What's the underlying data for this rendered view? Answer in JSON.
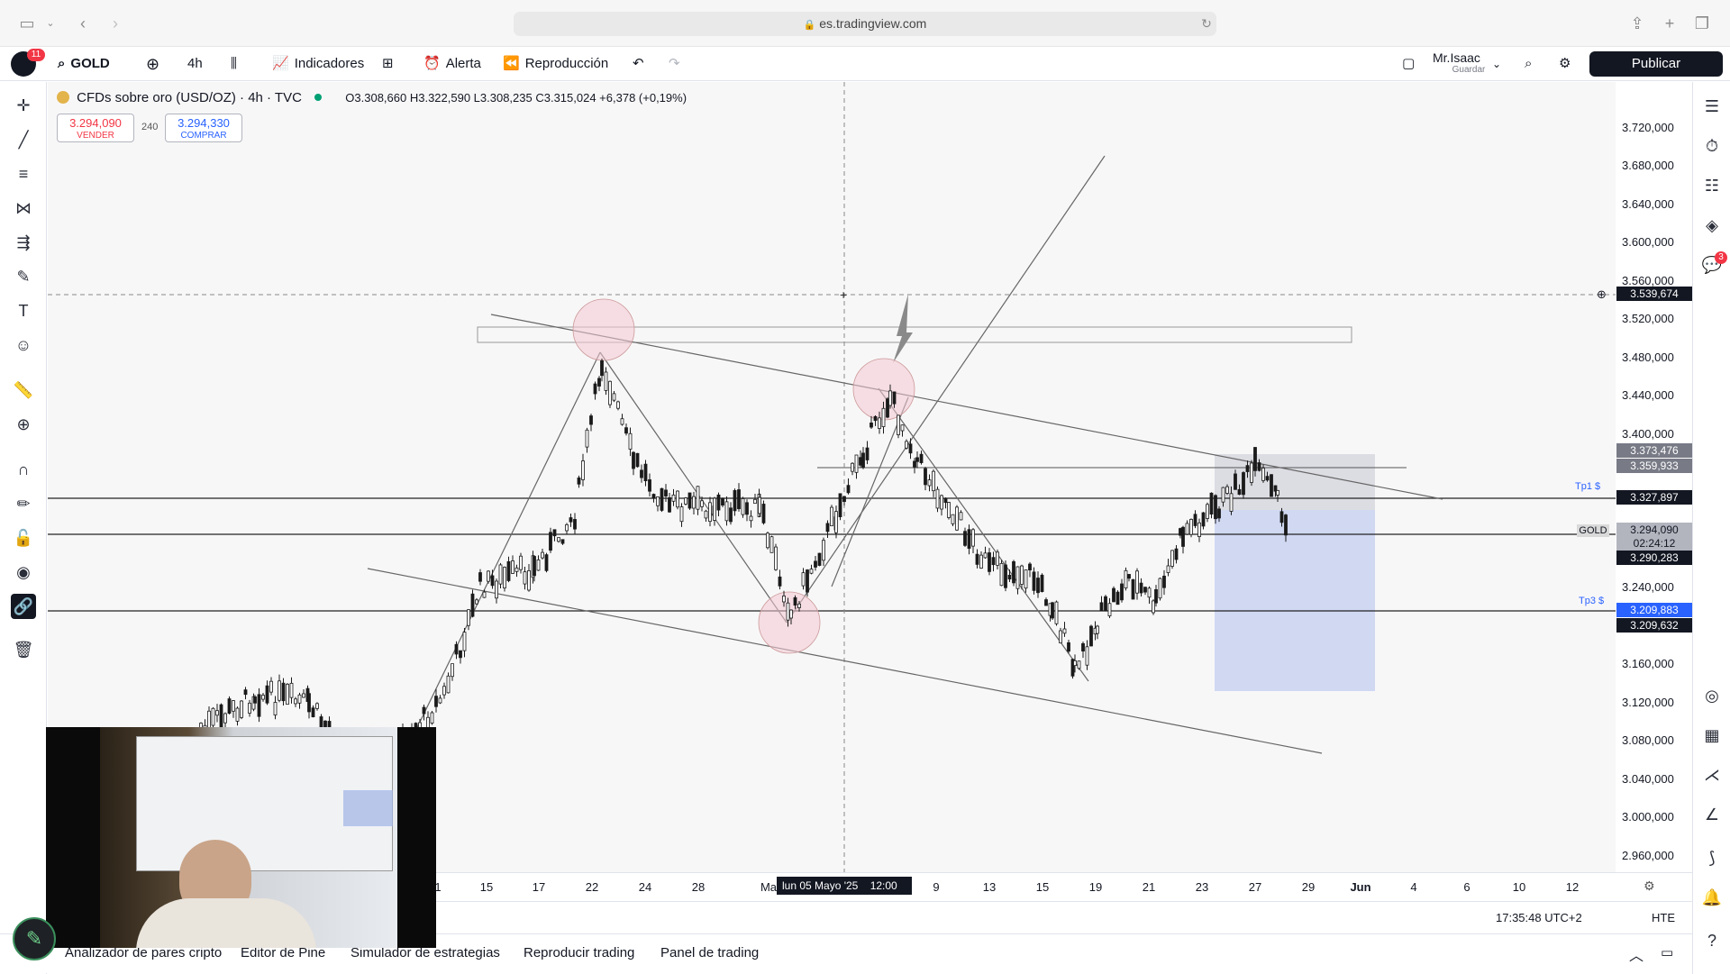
{
  "browser": {
    "url": "es.tradingview.com"
  },
  "toolbar": {
    "notif_count": "11",
    "symbol": "GOLD",
    "interval": "4h",
    "indicators_label": "Indicadores",
    "alert_label": "Alerta",
    "replay_label": "Reproducción",
    "user_name": "Mr.Isaac",
    "save_label": "Guardar",
    "publish_label": "Publicar"
  },
  "legend": {
    "title": "CFDs sobre oro (USD/OZ) · 4h · TVC",
    "ohlc": "O3.308,660 H3.322,590 L3.308,235 C3.315,024 +6,378 (+0,19%)",
    "sell_value": "3.294,090",
    "sell_label": "VENDER",
    "spread": "240",
    "buy_value": "3.294,330",
    "buy_label": "COMPRAR"
  },
  "price_scale": {
    "ticks": [
      "3.720,000",
      "3.680,000",
      "3.640,000",
      "3.600,000",
      "3.560,000",
      "3.520,000",
      "3.480,000",
      "3.440,000",
      "3.400,000",
      "3.240,000",
      "3.160,000",
      "3.120,000",
      "3.080,000",
      "3.040,000",
      "3.000,000",
      "2.960,000"
    ],
    "labels": {
      "crosshair": "3.539,674",
      "p1": "3.373,476",
      "p2": "3.359,933",
      "tp1": "3.327,897",
      "tp1_name": "Tp1 $",
      "current": "3.294,090",
      "countdown": "02:24:12",
      "gold_tag": "GOLD",
      "p3": "3.290,283",
      "tp3": "3.209,883",
      "tp3_name": "Tp3 $",
      "p4": "3.209,632"
    }
  },
  "time_axis": {
    "ticks": [
      "1",
      "15",
      "17",
      "22",
      "24",
      "28",
      "Ma",
      "9",
      "13",
      "15",
      "19",
      "21",
      "23",
      "27",
      "29",
      "Jun",
      "4",
      "6",
      "10",
      "12"
    ],
    "crosshair_date": "lun 05 Mayo '25",
    "crosshair_time": "12:00"
  },
  "status": {
    "clock": "17:35:48 UTC+2",
    "session": "HTE"
  },
  "bottom_tabs": [
    "Analizador de pares cripto",
    "Editor de Pine",
    "Simulador de estrategias",
    "Reproducir trading",
    "Panel de trading"
  ],
  "right_badge": "3",
  "colors": {
    "candle": "#1a1a1a",
    "circle_fill": "#f2c9d2",
    "position_box": "#c5cff0",
    "label_dark": "#131722",
    "label_grey": "#787b86",
    "label_blue": "#2962ff"
  }
}
